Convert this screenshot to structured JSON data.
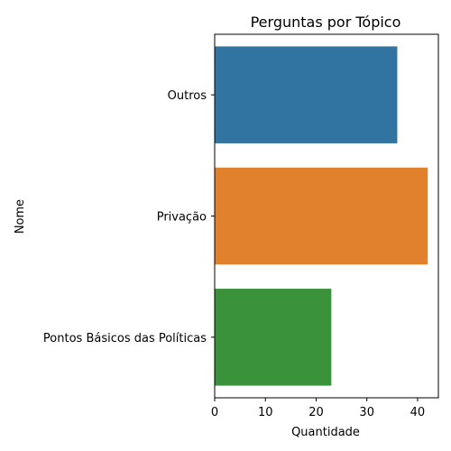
{
  "chart_data": {
    "type": "bar",
    "orientation": "horizontal",
    "title": "Perguntas por Tópico",
    "xlabel": "Quantidade",
    "ylabel": "Nome",
    "categories": [
      "Outros",
      "Privação",
      "Pontos Básicos das Políticas"
    ],
    "values": [
      36,
      42,
      23
    ],
    "colors": [
      "#3274a1",
      "#e1812c",
      "#3a923a"
    ],
    "xlim": [
      0,
      44.1
    ],
    "xticks": [
      0,
      10,
      20,
      30,
      40
    ],
    "grid": false,
    "legend": "none"
  }
}
